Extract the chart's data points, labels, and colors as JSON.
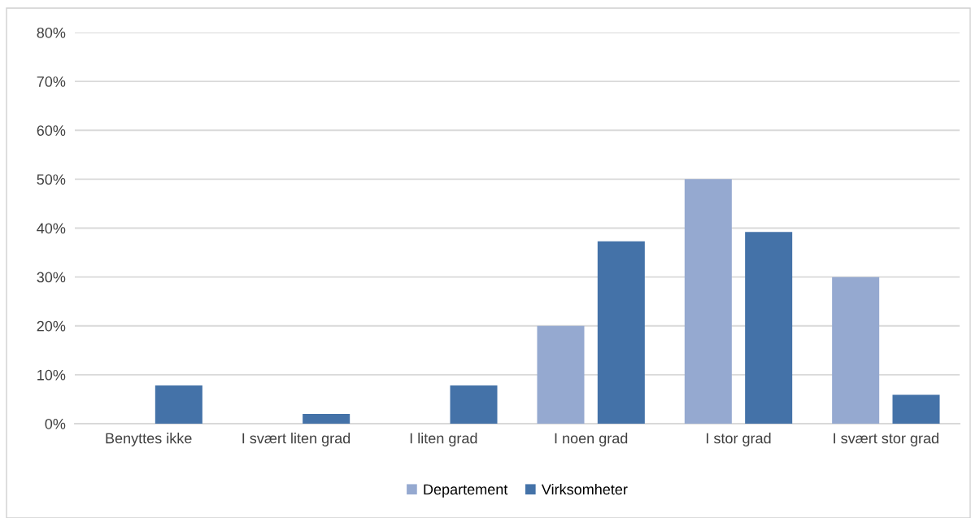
{
  "chart_data": {
    "type": "bar",
    "categories": [
      "Benyttes ikke",
      "I svært liten grad",
      "I liten grad",
      "I noen grad",
      "I stor grad",
      "I svært stor grad"
    ],
    "series": [
      {
        "name": "Departement",
        "color": "#95a9d0",
        "values": [
          0,
          0,
          0,
          20,
          50,
          30
        ]
      },
      {
        "name": "Virksomheter",
        "color": "#4472a8",
        "values": [
          7.8,
          2.0,
          7.8,
          37.3,
          39.2,
          5.9
        ]
      }
    ],
    "ylim": [
      0,
      80
    ],
    "yticks": [
      {
        "value": 0,
        "label": "0%"
      },
      {
        "value": 10,
        "label": "10%"
      },
      {
        "value": 20,
        "label": "20%"
      },
      {
        "value": 30,
        "label": "30%"
      },
      {
        "value": 40,
        "label": "40%"
      },
      {
        "value": 50,
        "label": "50%"
      },
      {
        "value": 60,
        "label": "60%"
      },
      {
        "value": 70,
        "label": "70%"
      },
      {
        "value": 80,
        "label": "80%"
      }
    ],
    "grid": "y",
    "legend": "bottom"
  }
}
